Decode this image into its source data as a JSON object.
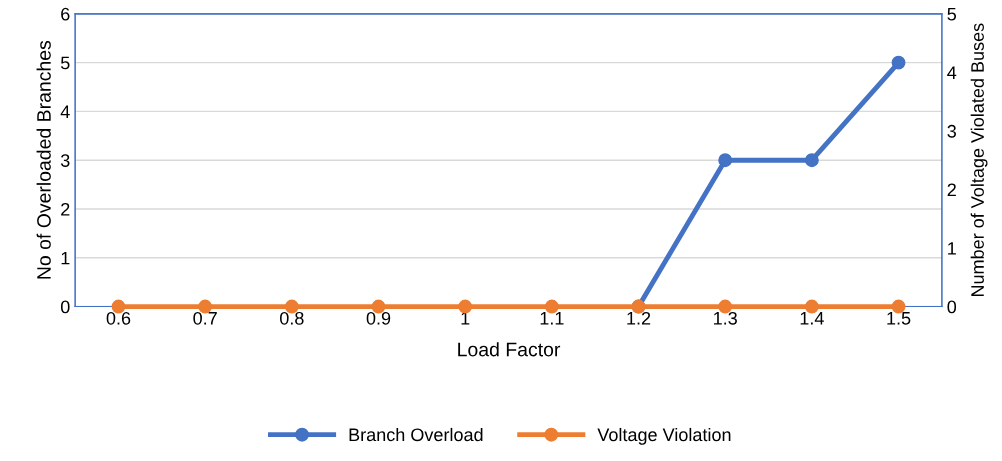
{
  "chart_data": {
    "type": "line",
    "xlabel": "Load Factor",
    "ylabel": "No of Overloaded Branches",
    "y2label": "Number of Voltage Violated Buses",
    "categories": [
      "0.6",
      "0.7",
      "0.8",
      "0.9",
      "1",
      "1.1",
      "1.2",
      "1.3",
      "1.4",
      "1.5"
    ],
    "series": [
      {
        "name": "Branch Overload",
        "color": "#4472c4",
        "values": [
          null,
          null,
          null,
          null,
          null,
          null,
          0,
          3,
          3,
          5
        ]
      },
      {
        "name": "Voltage Violation",
        "color": "#ed7d31",
        "axis": "y2",
        "values": [
          0,
          0,
          0,
          0,
          0,
          0,
          0,
          0,
          0,
          0
        ]
      }
    ],
    "ylim": [
      0,
      6
    ],
    "yticks": [
      0,
      1,
      2,
      3,
      4,
      5,
      6
    ],
    "y2lim": [
      0,
      5
    ],
    "y2ticks": [
      0,
      1,
      2,
      3,
      4,
      5
    ],
    "grid": "y",
    "legend": "bottom",
    "marker": "circle",
    "line_style": "solid"
  }
}
